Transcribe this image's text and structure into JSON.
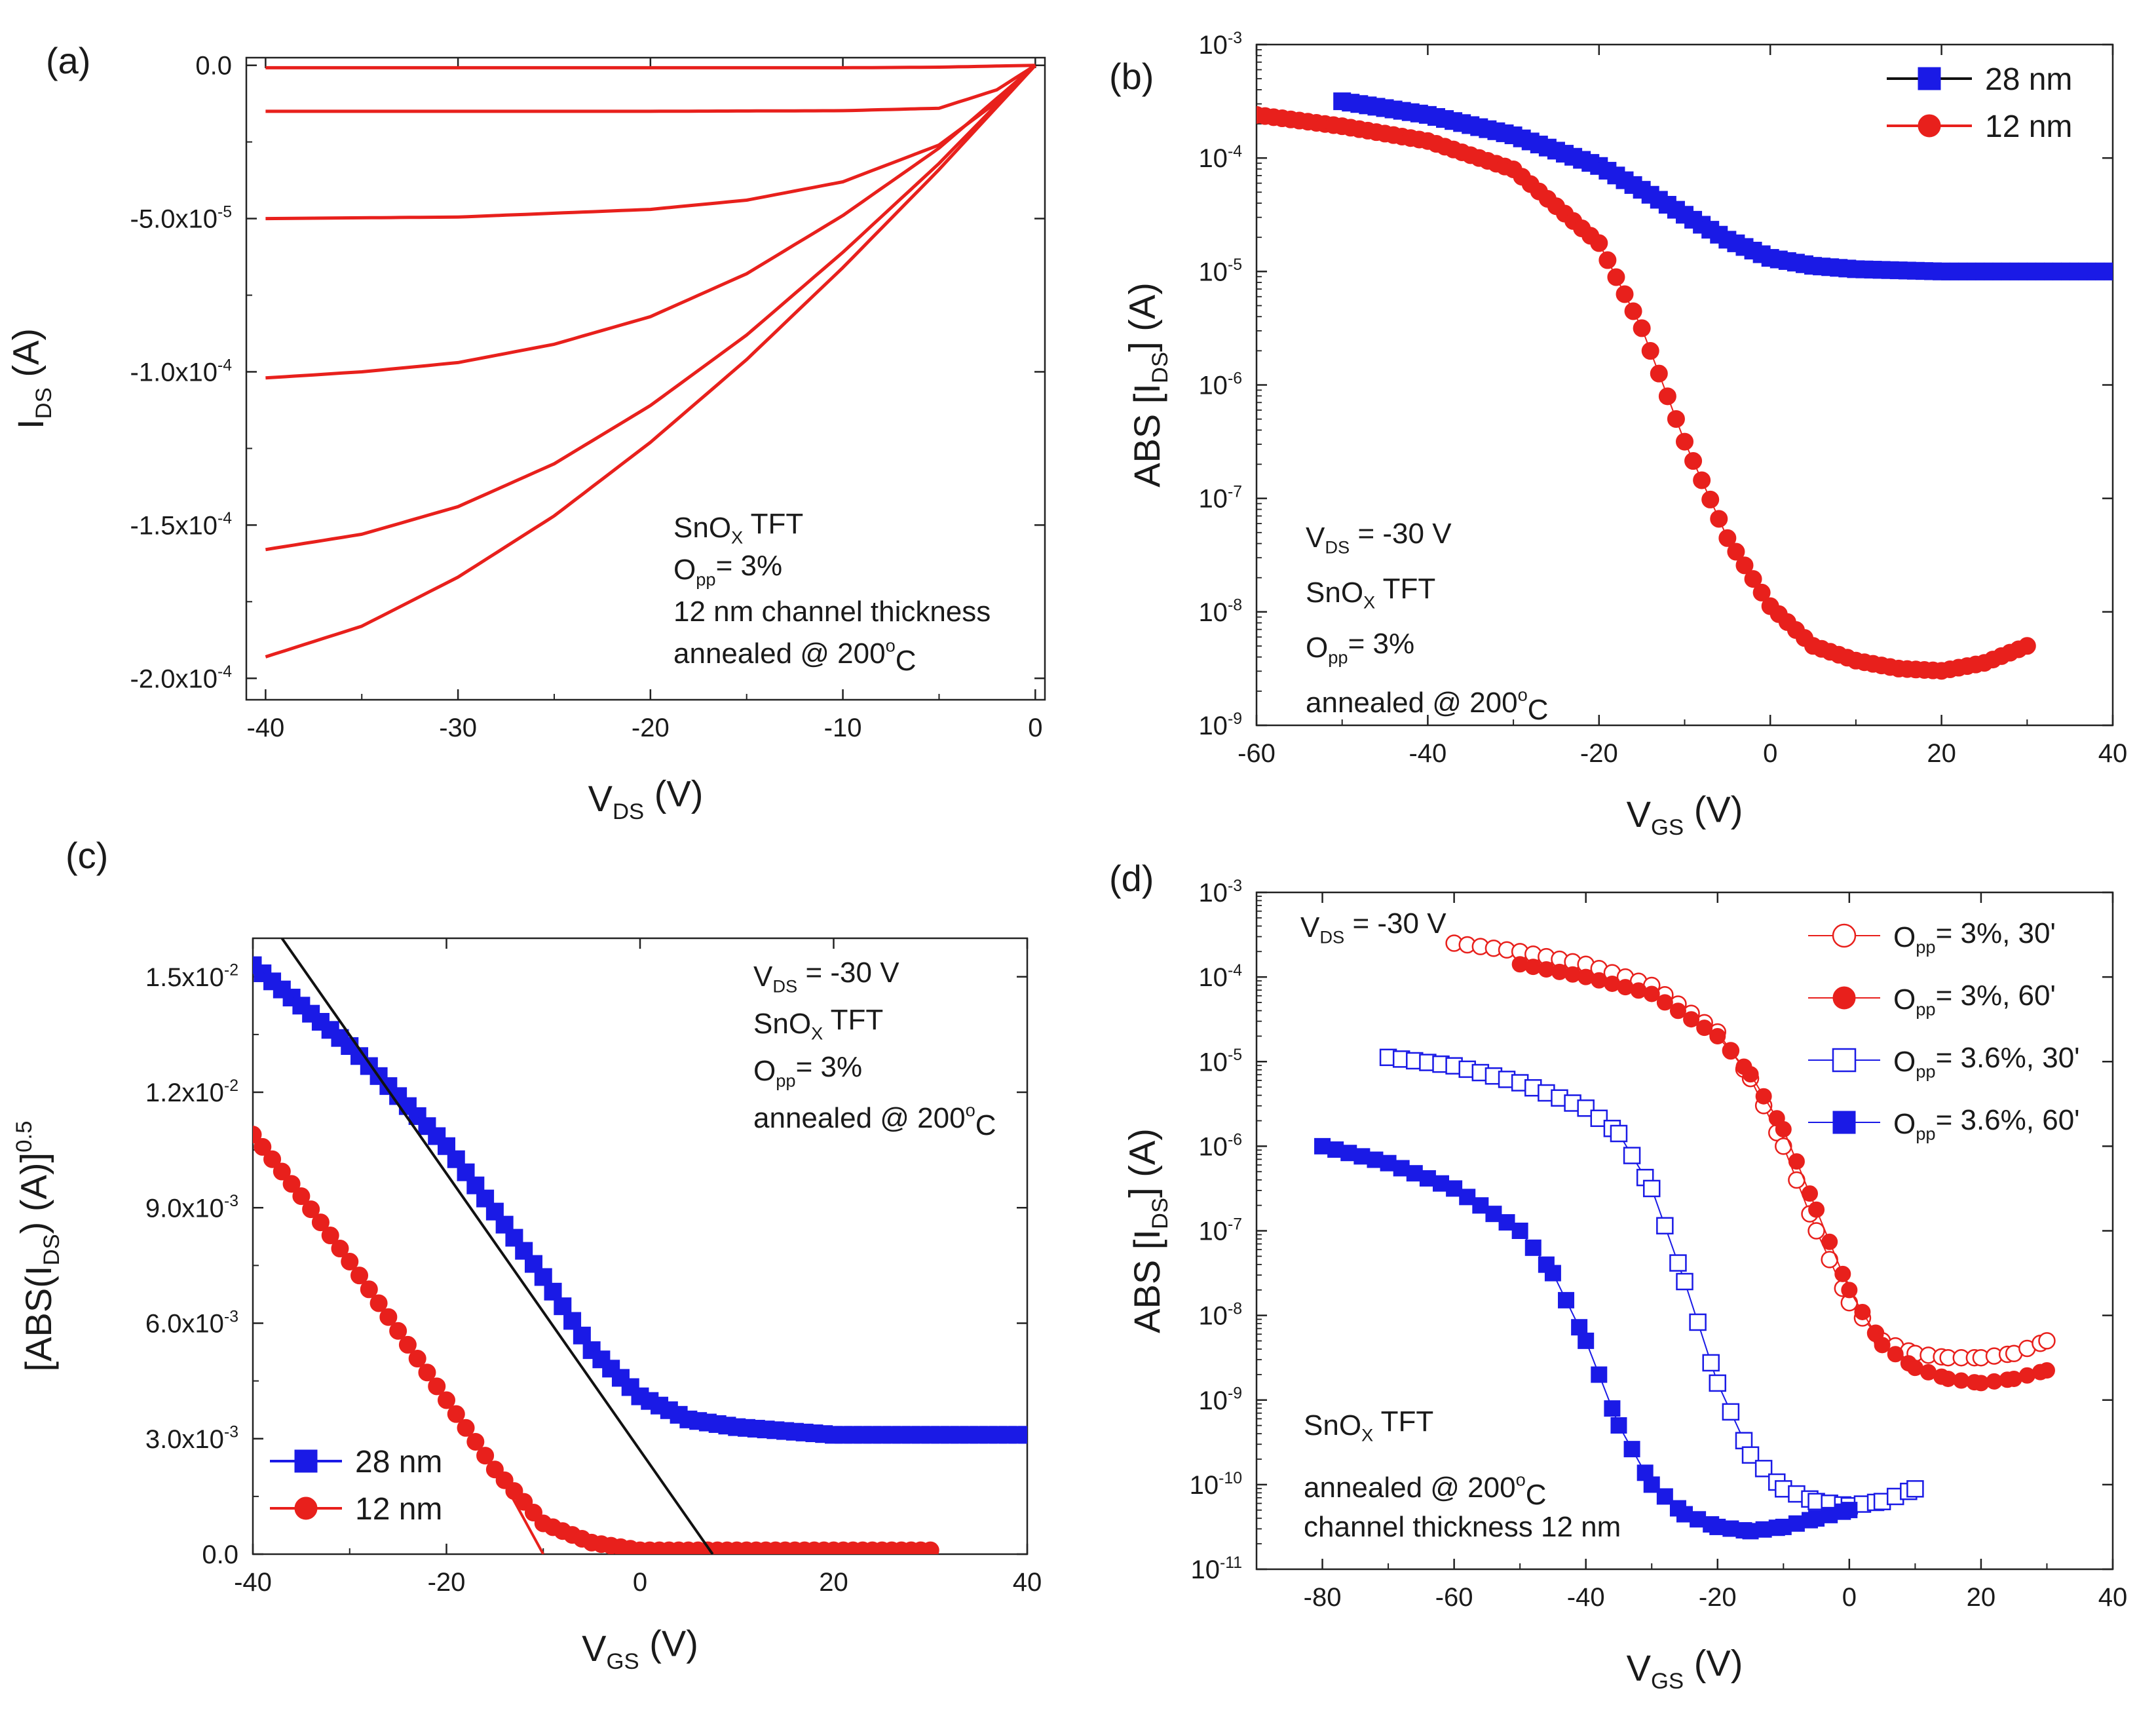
{
  "chart_data": [
    {
      "panel": "(a)",
      "type": "line",
      "xlabel": "V",
      "xlabel_sub": "DS",
      "xlabel_unit": " (V)",
      "ylabel": "I",
      "ylabel_sub": "DS",
      "ylabel_unit": " (A)",
      "xlim": [
        -41,
        0.5
      ],
      "ylim": [
        -0.000207,
        2.5e-06
      ],
      "xticks": [
        -40,
        -30,
        -20,
        -10,
        0
      ],
      "xtick_labels": [
        "-40",
        "-30",
        "-20",
        "-10",
        "0"
      ],
      "yticks": [
        0,
        -5e-05,
        -0.0001,
        -0.00015,
        -0.0002
      ],
      "ytick_labels": [
        "0.0",
        "-5.0x10",
        "-1.0x10",
        "-1.5x10",
        "-2.0x10"
      ],
      "ytick_exps": [
        "",
        "-5",
        "-4",
        "-4",
        "-4"
      ],
      "series_color": "#e8201c",
      "series": [
        {
          "name": "curve 1",
          "x": [
            -40,
            -30,
            -20,
            -10,
            -5,
            0
          ],
          "y": [
            -8e-07,
            -8e-07,
            -8e-07,
            -8e-07,
            -6e-07,
            0
          ]
        },
        {
          "name": "curve 2",
          "x": [
            -40,
            -30,
            -20,
            -10,
            -5,
            -2,
            0
          ],
          "y": [
            -1.5e-05,
            -1.5e-05,
            -1.5e-05,
            -1.48e-05,
            -1.4e-05,
            -8e-06,
            0
          ]
        },
        {
          "name": "curve 3",
          "x": [
            -40,
            -30,
            -20,
            -15,
            -10,
            -5,
            -2,
            0
          ],
          "y": [
            -5e-05,
            -4.95e-05,
            -4.7e-05,
            -4.4e-05,
            -3.8e-05,
            -2.6e-05,
            -1.2e-05,
            0
          ]
        },
        {
          "name": "curve 4",
          "x": [
            -40,
            -35,
            -30,
            -25,
            -20,
            -15,
            -10,
            -5,
            0
          ],
          "y": [
            -0.000102,
            -0.0001,
            -9.7e-05,
            -9.1e-05,
            -8.2e-05,
            -6.8e-05,
            -4.9e-05,
            -2.7e-05,
            0
          ]
        },
        {
          "name": "curve 5",
          "x": [
            -40,
            -35,
            -30,
            -25,
            -20,
            -15,
            -10,
            -5,
            0
          ],
          "y": [
            -0.000158,
            -0.000153,
            -0.000144,
            -0.00013,
            -0.000111,
            -8.8e-05,
            -6.1e-05,
            -3.2e-05,
            0
          ]
        },
        {
          "name": "curve 6",
          "x": [
            -40,
            -35,
            -30,
            -25,
            -20,
            -15,
            -10,
            -5,
            0
          ],
          "y": [
            -0.000193,
            -0.000183,
            -0.000167,
            -0.000147,
            -0.000123,
            -9.6e-05,
            -6.6e-05,
            -3.4e-05,
            0
          ]
        }
      ],
      "annotations": [
        {
          "text": "SnO",
          "sub": "X",
          "after": " TFT"
        },
        {
          "text": "O",
          "sub": "pp",
          "after": "= 3%"
        },
        {
          "text": "12 nm channel thickness",
          "sub": "",
          "after": ""
        },
        {
          "text": "annealed @ 200",
          "sup": "o",
          "after": "C"
        }
      ]
    },
    {
      "panel": "(b)",
      "type": "scatter",
      "yscale": "log",
      "xlabel": "V",
      "xlabel_sub": "GS",
      "xlabel_unit": " (V)",
      "ylabel": "ABS [I",
      "ylabel_sub": "DS",
      "ylabel_unit": "] (A)",
      "xlim": [
        -60,
        40
      ],
      "ylim_exp": [
        -9,
        -3
      ],
      "xticks": [
        -60,
        -40,
        -20,
        0,
        20,
        40
      ],
      "xtick_labels": [
        "-60",
        "-40",
        "-20",
        "0",
        "20",
        "40"
      ],
      "ytick_base": "10",
      "ytick_exps": [
        "-9",
        "-8",
        "-7",
        "-6",
        "-5",
        "-4",
        "-3"
      ],
      "legend": [
        {
          "label": "28 nm",
          "color": "#1a1ae6",
          "marker": "square"
        },
        {
          "label": "12 nm",
          "color": "#e8201c",
          "marker": "circle"
        }
      ],
      "series": [
        {
          "name": "28 nm",
          "color": "#1a1ae6",
          "marker": "square",
          "filled": true,
          "step": 1,
          "x": [
            -50,
            -40,
            -30,
            -20,
            -15,
            -10,
            -5,
            0,
            5,
            10,
            20,
            30,
            40
          ],
          "log10y": [
            -3.5,
            -3.62,
            -3.8,
            -4.07,
            -4.28,
            -4.5,
            -4.72,
            -4.88,
            -4.95,
            -4.98,
            -5.0,
            -5.0,
            -5.0
          ]
        },
        {
          "name": "12 nm",
          "color": "#e8201c",
          "marker": "circle",
          "filled": true,
          "step": 1,
          "x": [
            -60,
            -50,
            -40,
            -30,
            -20,
            -15,
            -10,
            -5,
            0,
            5,
            10,
            15,
            20,
            25,
            30
          ],
          "log10y": [
            -3.62,
            -3.72,
            -3.85,
            -4.1,
            -4.75,
            -5.5,
            -6.5,
            -7.35,
            -7.95,
            -8.3,
            -8.43,
            -8.5,
            -8.52,
            -8.45,
            -8.3
          ]
        }
      ],
      "annotations": [
        {
          "text": "V",
          "sub": "DS",
          "after": " = -30 V"
        },
        {
          "text": "SnO",
          "sub": "X",
          "after": " TFT"
        },
        {
          "text": "O",
          "sub": "pp",
          "after": "= 3%"
        },
        {
          "text": "annealed @ 200",
          "sup": "o",
          "after": "C"
        }
      ]
    },
    {
      "panel": "(c)",
      "type": "scatter",
      "xlabel": "V",
      "xlabel_sub": "GS",
      "xlabel_unit": " (V)",
      "ylabel": "[ABS(I",
      "ylabel_sub": "DS",
      "ylabel_unit": ") (A)]",
      "ylabel_sup": "0.5",
      "xlim": [
        -40,
        40
      ],
      "ylim": [
        0,
        0.016
      ],
      "xticks": [
        -40,
        -20,
        0,
        20,
        40
      ],
      "xtick_labels": [
        "-40",
        "-20",
        "0",
        "20",
        "40"
      ],
      "yticks": [
        0,
        0.003,
        0.006,
        0.009,
        0.012,
        0.015
      ],
      "ytick_labels": [
        "0.0",
        "3.0x10",
        "6.0x10",
        "9.0x10",
        "1.2x10",
        "1.5x10"
      ],
      "ytick_exps": [
        "",
        "-3",
        "-3",
        "-3",
        "-2",
        "-2"
      ],
      "legend": [
        {
          "label": "28 nm",
          "color": "#1a1ae6",
          "marker": "square"
        },
        {
          "label": "12 nm",
          "color": "#e8201c",
          "marker": "circle"
        }
      ],
      "series": [
        {
          "name": "28 nm",
          "color": "#1a1ae6",
          "marker": "square",
          "filled": true,
          "step": 1,
          "x": [
            -40,
            -30,
            -20,
            -10,
            -5,
            0,
            5,
            10,
            20,
            30,
            40
          ],
          "y": [
            0.0153,
            0.0132,
            0.0106,
            0.0072,
            0.0053,
            0.0041,
            0.0035,
            0.0033,
            0.0031,
            0.0031,
            0.0031
          ]
        },
        {
          "name": "12 nm",
          "color": "#e8201c",
          "marker": "circle",
          "filled": true,
          "step": 1,
          "x": [
            -40,
            -35,
            -30,
            -25,
            -20,
            -15,
            -10,
            -5,
            0,
            10,
            20,
            30
          ],
          "y": [
            0.0109,
            0.0093,
            0.0076,
            0.0058,
            0.004,
            0.0022,
            0.0008,
            0.0003,
            0.0001,
            0.0001,
            0.0001,
            0.0001
          ]
        }
      ],
      "fit_lines": [
        {
          "name": "28 nm fit",
          "color": "#111111",
          "x": [
            -37,
            7.5
          ],
          "y": [
            0.016,
            0
          ]
        },
        {
          "name": "12 nm fit",
          "color": "#e8201c",
          "x": [
            -15,
            -10
          ],
          "y": [
            0.0023,
            0
          ]
        }
      ],
      "annotations": [
        {
          "text": "V",
          "sub": "DS",
          "after": " = -30 V"
        },
        {
          "text": "SnO",
          "sub": "X",
          "after": " TFT"
        },
        {
          "text": "O",
          "sub": "pp",
          "after": "= 3%"
        },
        {
          "text": "annealed @ 200",
          "sup": "o",
          "after": "C"
        }
      ]
    },
    {
      "panel": "(d)",
      "type": "scatter",
      "yscale": "log",
      "xlabel": "V",
      "xlabel_sub": "GS",
      "xlabel_unit": " (V)",
      "ylabel": "ABS [I",
      "ylabel_sub": "DS",
      "ylabel_unit": "] (A)",
      "xlim": [
        -90,
        40
      ],
      "ylim_exp": [
        -11,
        -3
      ],
      "xticks": [
        -80,
        -60,
        -40,
        -20,
        0,
        20,
        40
      ],
      "xtick_labels": [
        "-80",
        "-60",
        "-40",
        "-20",
        "0",
        "20",
        "40"
      ],
      "ytick_base": "10",
      "ytick_exps": [
        "-11",
        "-10",
        "-9",
        "-8",
        "-7",
        "-6",
        "-5",
        "-4",
        "-3"
      ],
      "legend": [
        {
          "prefix": "O",
          "sub": "pp",
          "label": "= 3%, 30'",
          "color": "#e8201c",
          "marker": "circle",
          "filled": false
        },
        {
          "prefix": "O",
          "sub": "pp",
          "label": "= 3%, 60'",
          "color": "#e8201c",
          "marker": "circle",
          "filled": true
        },
        {
          "prefix": "O",
          "sub": "pp",
          "label": "= 3.6%, 30'",
          "color": "#1a1ae6",
          "marker": "square",
          "filled": false
        },
        {
          "prefix": "O",
          "sub": "pp",
          "label": "= 3.6%, 60'",
          "color": "#1a1ae6",
          "marker": "square",
          "filled": true
        }
      ],
      "series": [
        {
          "name": "Opp 3%, 30'",
          "color": "#e8201c",
          "marker": "circle",
          "filled": false,
          "step": 2,
          "x": [
            -60,
            -50,
            -40,
            -30,
            -20,
            -15,
            -10,
            -5,
            0,
            5,
            10,
            15,
            20,
            25,
            30
          ],
          "log10y": [
            -3.6,
            -3.7,
            -3.85,
            -4.1,
            -4.65,
            -5.2,
            -6.0,
            -7.0,
            -7.85,
            -8.3,
            -8.45,
            -8.5,
            -8.5,
            -8.45,
            -8.3
          ]
        },
        {
          "name": "Opp 3%, 60'",
          "color": "#e8201c",
          "marker": "circle",
          "filled": true,
          "step": 2,
          "x": [
            -50,
            -40,
            -30,
            -20,
            -15,
            -10,
            -5,
            0,
            5,
            10,
            15,
            20,
            25,
            30
          ],
          "log10y": [
            -3.85,
            -4.0,
            -4.2,
            -4.7,
            -5.15,
            -5.8,
            -6.75,
            -7.7,
            -8.35,
            -8.62,
            -8.75,
            -8.8,
            -8.75,
            -8.65
          ]
        },
        {
          "name": "Opp 3.6%, 30'",
          "color": "#1a1ae6",
          "marker": "square",
          "filled": false,
          "step": 2,
          "x": [
            -70,
            -60,
            -50,
            -40,
            -35,
            -30,
            -25,
            -20,
            -15,
            -10,
            -5,
            0,
            5,
            10
          ],
          "log10y": [
            -4.95,
            -5.05,
            -5.25,
            -5.55,
            -5.85,
            -6.5,
            -7.6,
            -8.8,
            -9.65,
            -10.05,
            -10.2,
            -10.25,
            -10.2,
            -10.05
          ]
        },
        {
          "name": "Opp 3.6%, 60'",
          "color": "#1a1ae6",
          "marker": "square",
          "filled": true,
          "step": 2,
          "x": [
            -80,
            -70,
            -60,
            -50,
            -45,
            -40,
            -35,
            -30,
            -25,
            -20,
            -15,
            -10,
            -5,
            0
          ],
          "log10y": [
            -6.0,
            -6.2,
            -6.5,
            -7.0,
            -7.5,
            -8.3,
            -9.3,
            -10.0,
            -10.35,
            -10.5,
            -10.55,
            -10.5,
            -10.4,
            -10.3
          ]
        }
      ],
      "annotations": [
        {
          "text": "V",
          "sub": "DS",
          "after": " = -30 V"
        },
        {
          "text": "SnO",
          "sub": "X",
          "after": " TFT"
        },
        {
          "text": "annealed @ 200",
          "sup": "o",
          "after": "C"
        },
        {
          "text": "channel thickness 12 nm",
          "sub": "",
          "after": ""
        }
      ]
    }
  ]
}
